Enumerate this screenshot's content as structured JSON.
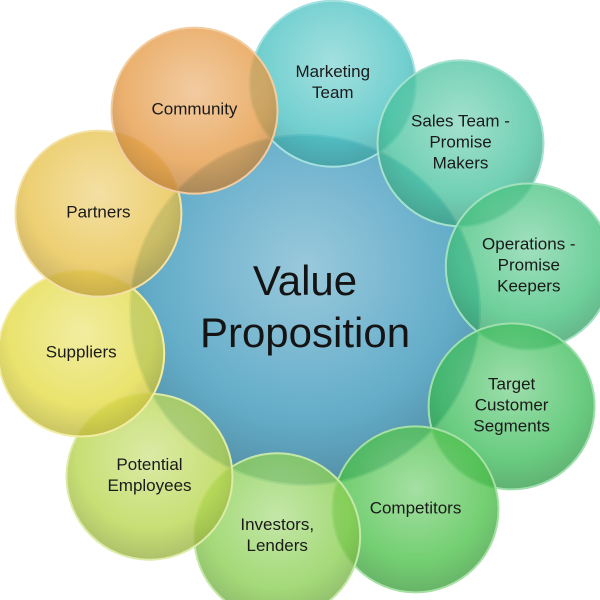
{
  "center": {
    "lines": [
      "Value",
      "Proposition"
    ],
    "color": "#5BA8C6"
  },
  "stakeholders": [
    {
      "lines": [
        "Marketing",
        "Team"
      ],
      "color": "#4BC2C2"
    },
    {
      "lines": [
        "Sales Team -",
        "Promise",
        "Makers"
      ],
      "color": "#49C39E"
    },
    {
      "lines": [
        "Operations -",
        "Promise",
        "Keepers"
      ],
      "color": "#45C27F"
    },
    {
      "lines": [
        "Target",
        "Customer",
        "Segments"
      ],
      "color": "#3FBE5C"
    },
    {
      "lines": [
        "Competitors"
      ],
      "color": "#4CC14A"
    },
    {
      "lines": [
        "Investors,",
        "Lenders"
      ],
      "color": "#8ACF52"
    },
    {
      "lines": [
        "Potential",
        "Employees"
      ],
      "color": "#B8D64E"
    },
    {
      "lines": [
        "Suppliers"
      ],
      "color": "#E4DB45"
    },
    {
      "lines": [
        "Partners"
      ],
      "color": "#E8C24B"
    },
    {
      "lines": [
        "Community"
      ],
      "color": "#E59A45"
    }
  ]
}
